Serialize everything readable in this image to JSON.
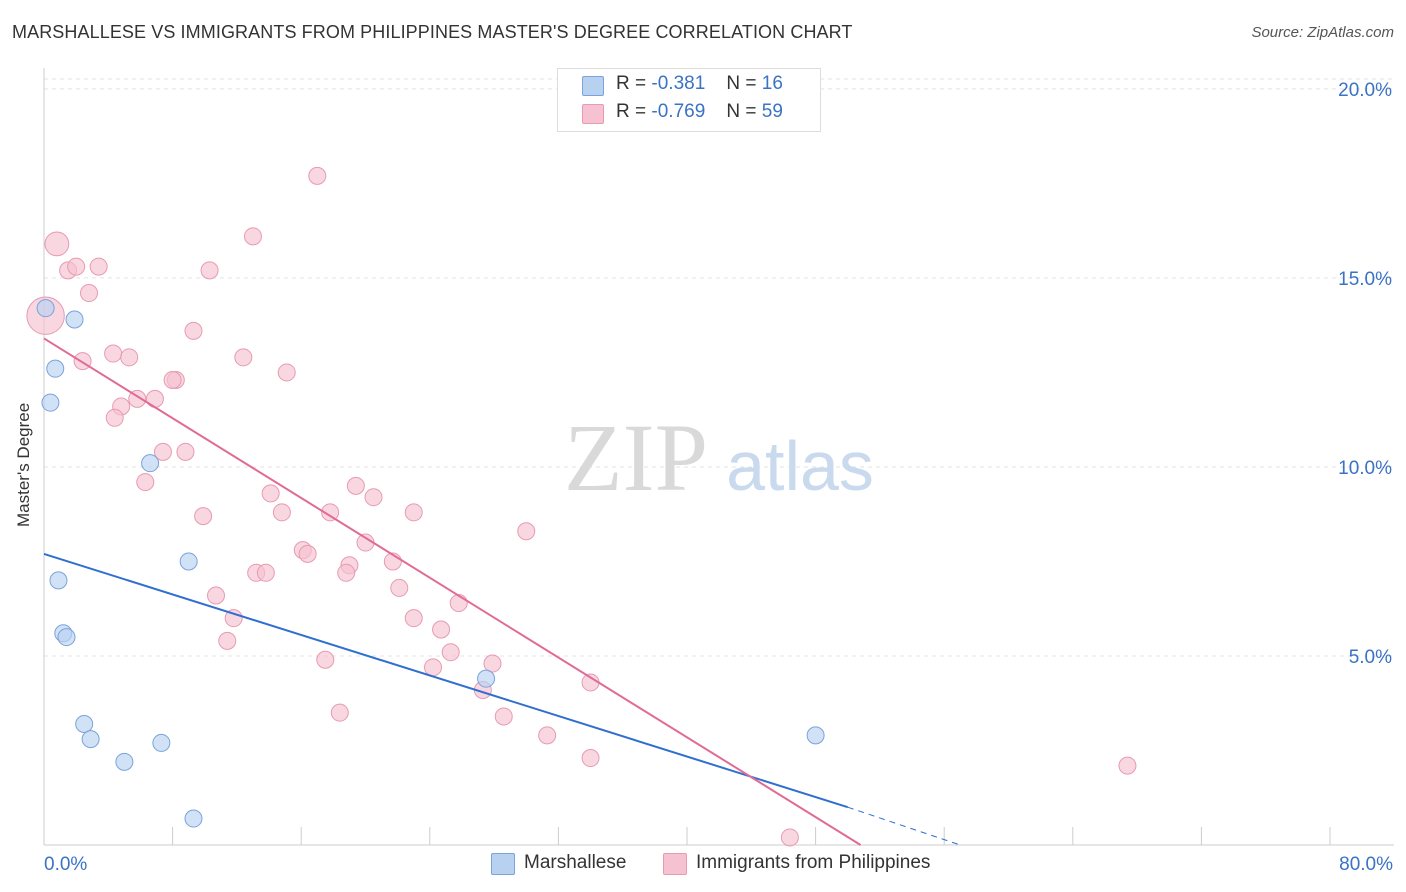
{
  "title": "MARSHALLESE VS IMMIGRANTS FROM PHILIPPINES MASTER'S DEGREE CORRELATION CHART",
  "source": "Source: ZipAtlas.com",
  "watermark": {
    "zip": "ZIP",
    "atlas": "atlas"
  },
  "legend_top": {
    "rows": [
      {
        "r_label": "R =",
        "r_value": "-0.381",
        "n_label": "N =",
        "n_value": "16"
      },
      {
        "r_label": "R =",
        "r_value": "-0.769",
        "n_label": "N =",
        "n_value": "59"
      }
    ]
  },
  "legend_bottom": {
    "items": [
      "Marshallese",
      "Immigrants from Philippines"
    ]
  },
  "colors": {
    "blue_fill": "#b9d1f1",
    "blue_stroke": "#7aa3d9",
    "blue_line": "#2f6fd0",
    "pink_fill": "#f6c1d1",
    "pink_stroke": "#e79ab3",
    "pink_line": "#e06b96",
    "axis_tick_text": "#3a72c4",
    "grid": "#e3e3e3"
  },
  "chart_data": {
    "type": "scatter",
    "title": "MARSHALLESE VS IMMIGRANTS FROM PHILIPPINES MASTER'S DEGREE CORRELATION CHART",
    "xlabel": "",
    "ylabel": "Master's Degree",
    "xlim": [
      0,
      80
    ],
    "ylim": [
      0,
      20.5
    ],
    "x_tick_labels": [
      "0.0%",
      "80.0%"
    ],
    "y_ticks": [
      5,
      10,
      15,
      20
    ],
    "y_tick_labels": [
      "5.0%",
      "10.0%",
      "15.0%",
      "20.0%"
    ],
    "grid": true,
    "legend": "top-center",
    "series": [
      {
        "name": "Marshallese",
        "color": "blue",
        "points": [
          {
            "x": 0.1,
            "y": 14.2,
            "s": 1
          },
          {
            "x": 1.9,
            "y": 13.9,
            "s": 1
          },
          {
            "x": 0.7,
            "y": 12.6,
            "s": 1
          },
          {
            "x": 0.4,
            "y": 11.7,
            "s": 1
          },
          {
            "x": 6.6,
            "y": 10.1,
            "s": 1
          },
          {
            "x": 9.0,
            "y": 7.5,
            "s": 1
          },
          {
            "x": 0.9,
            "y": 7.0,
            "s": 1
          },
          {
            "x": 1.2,
            "y": 5.6,
            "s": 1
          },
          {
            "x": 1.4,
            "y": 5.5,
            "s": 1
          },
          {
            "x": 2.5,
            "y": 3.2,
            "s": 1
          },
          {
            "x": 2.9,
            "y": 2.8,
            "s": 1
          },
          {
            "x": 7.3,
            "y": 2.7,
            "s": 1
          },
          {
            "x": 5.0,
            "y": 2.2,
            "s": 1
          },
          {
            "x": 27.5,
            "y": 4.4,
            "s": 1
          },
          {
            "x": 48.0,
            "y": 2.9,
            "s": 1
          },
          {
            "x": 9.3,
            "y": 0.7,
            "s": 1
          }
        ],
        "trend": {
          "x": [
            0,
            50
          ],
          "y": [
            7.7,
            1.0
          ],
          "dashed_to": {
            "x": 57,
            "y": 0.0
          }
        }
      },
      {
        "name": "Immigrants from Philippines",
        "color": "pink",
        "points": [
          {
            "x": 0.1,
            "y": 14.0,
            "s": 2.2
          },
          {
            "x": 0.8,
            "y": 15.9,
            "s": 1.4
          },
          {
            "x": 1.5,
            "y": 15.2,
            "s": 1
          },
          {
            "x": 2.0,
            "y": 15.3,
            "s": 1
          },
          {
            "x": 3.4,
            "y": 15.3,
            "s": 1
          },
          {
            "x": 2.8,
            "y": 14.6,
            "s": 1
          },
          {
            "x": 17.0,
            "y": 17.7,
            "s": 1
          },
          {
            "x": 13.0,
            "y": 16.1,
            "s": 1
          },
          {
            "x": 10.3,
            "y": 15.2,
            "s": 1
          },
          {
            "x": 9.3,
            "y": 13.6,
            "s": 1
          },
          {
            "x": 4.3,
            "y": 13.0,
            "s": 1
          },
          {
            "x": 5.3,
            "y": 12.9,
            "s": 1
          },
          {
            "x": 2.4,
            "y": 12.8,
            "s": 1
          },
          {
            "x": 12.4,
            "y": 12.9,
            "s": 1
          },
          {
            "x": 15.1,
            "y": 12.5,
            "s": 1
          },
          {
            "x": 8.2,
            "y": 12.3,
            "s": 1
          },
          {
            "x": 8.0,
            "y": 12.3,
            "s": 1
          },
          {
            "x": 5.8,
            "y": 11.8,
            "s": 1
          },
          {
            "x": 6.9,
            "y": 11.8,
            "s": 1
          },
          {
            "x": 4.8,
            "y": 11.6,
            "s": 1
          },
          {
            "x": 4.4,
            "y": 11.3,
            "s": 1
          },
          {
            "x": 7.4,
            "y": 10.4,
            "s": 1
          },
          {
            "x": 8.8,
            "y": 10.4,
            "s": 1
          },
          {
            "x": 6.3,
            "y": 9.6,
            "s": 1
          },
          {
            "x": 14.1,
            "y": 9.3,
            "s": 1
          },
          {
            "x": 19.4,
            "y": 9.5,
            "s": 1
          },
          {
            "x": 20.5,
            "y": 9.2,
            "s": 1
          },
          {
            "x": 9.9,
            "y": 8.7,
            "s": 1
          },
          {
            "x": 14.8,
            "y": 8.8,
            "s": 1
          },
          {
            "x": 17.8,
            "y": 8.8,
            "s": 1
          },
          {
            "x": 23.0,
            "y": 8.8,
            "s": 1
          },
          {
            "x": 30.0,
            "y": 8.3,
            "s": 1
          },
          {
            "x": 20.0,
            "y": 8.0,
            "s": 1
          },
          {
            "x": 16.1,
            "y": 7.8,
            "s": 1
          },
          {
            "x": 16.4,
            "y": 7.7,
            "s": 1
          },
          {
            "x": 21.7,
            "y": 7.5,
            "s": 1
          },
          {
            "x": 19.0,
            "y": 7.4,
            "s": 1
          },
          {
            "x": 18.8,
            "y": 7.2,
            "s": 1
          },
          {
            "x": 13.2,
            "y": 7.2,
            "s": 1
          },
          {
            "x": 13.8,
            "y": 7.2,
            "s": 1
          },
          {
            "x": 10.7,
            "y": 6.6,
            "s": 1
          },
          {
            "x": 22.1,
            "y": 6.8,
            "s": 1
          },
          {
            "x": 25.8,
            "y": 6.4,
            "s": 1
          },
          {
            "x": 11.8,
            "y": 6.0,
            "s": 1
          },
          {
            "x": 23.0,
            "y": 6.0,
            "s": 1
          },
          {
            "x": 24.7,
            "y": 5.7,
            "s": 1
          },
          {
            "x": 11.4,
            "y": 5.4,
            "s": 1
          },
          {
            "x": 25.3,
            "y": 5.1,
            "s": 1
          },
          {
            "x": 17.5,
            "y": 4.9,
            "s": 1
          },
          {
            "x": 27.9,
            "y": 4.8,
            "s": 1
          },
          {
            "x": 24.2,
            "y": 4.7,
            "s": 1
          },
          {
            "x": 34.0,
            "y": 4.3,
            "s": 1
          },
          {
            "x": 27.3,
            "y": 4.1,
            "s": 1
          },
          {
            "x": 18.4,
            "y": 3.5,
            "s": 1
          },
          {
            "x": 28.6,
            "y": 3.4,
            "s": 1
          },
          {
            "x": 31.3,
            "y": 2.9,
            "s": 1
          },
          {
            "x": 34.0,
            "y": 2.3,
            "s": 1
          },
          {
            "x": 67.4,
            "y": 2.1,
            "s": 1
          },
          {
            "x": 46.4,
            "y": 0.2,
            "s": 1
          }
        ],
        "trend": {
          "x": [
            0,
            50.8
          ],
          "y": [
            13.4,
            0.0
          ]
        }
      }
    ]
  }
}
